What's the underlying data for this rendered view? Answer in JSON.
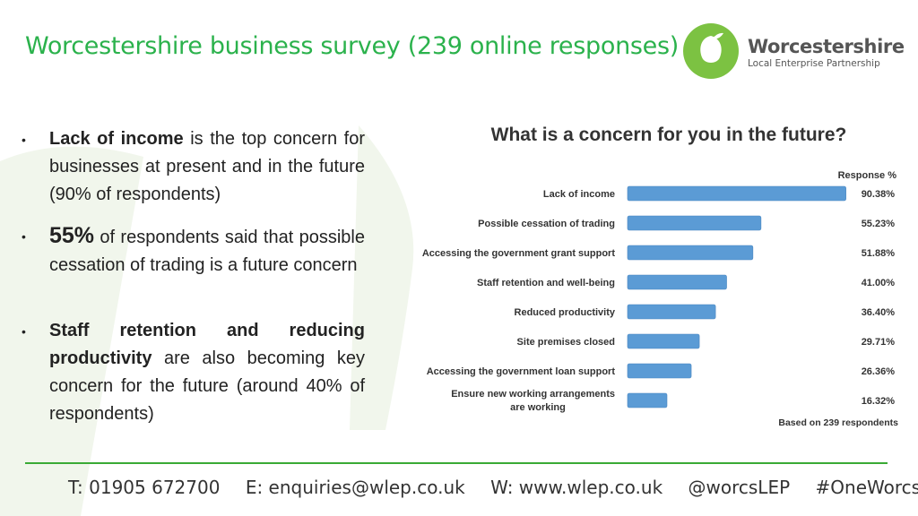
{
  "slide": {
    "title": "Worcestershire business survey (239 online responses)",
    "accent_color": "#2bb24c"
  },
  "logo": {
    "name": "Worcestershire",
    "subtitle": "Local Enterprise Partnership",
    "icon": "pear-leaf-icon"
  },
  "bullets": [
    {
      "strong": "Lack of income",
      "rest": " is the top concern for businesses at present and in the future (90% of respondents)"
    },
    {
      "strong": "55%",
      "rest": " of respondents said that possible cessation of trading is a future concern"
    },
    {
      "strong": "Staff retention and reducing productivity",
      "rest": " are also becoming key concern for the future (around 40% of respondents)"
    }
  ],
  "chart_data": {
    "type": "bar",
    "orientation": "horizontal",
    "title": "What is a concern for you in the future?",
    "value_header": "Response %",
    "footnote": "Based on 239 respondents",
    "categories": [
      "Lack of income",
      "Possible cessation of trading",
      "Accessing the government grant support",
      "Staff retention and well-being",
      "Reduced productivity",
      "Site premises closed",
      "Accessing the government loan support",
      "Ensure new working arrangements are working"
    ],
    "values": [
      90.38,
      55.23,
      51.88,
      41.0,
      36.4,
      29.71,
      26.36,
      16.32
    ],
    "value_labels": [
      "90.38%",
      "55.23%",
      "51.88%",
      "41.00%",
      "36.40%",
      "29.71%",
      "26.36%",
      "16.32%"
    ],
    "xlim": [
      0,
      92
    ],
    "bar_color": "#5b9bd5",
    "grid": false
  },
  "footer": {
    "phone": "T: 01905 672700",
    "email": "E: enquiries@wlep.co.uk",
    "web": "W: www.wlep.co.uk",
    "twitter": "@worcsLEP",
    "hashtag": "#OneWorcs",
    "rule_color": "#3aaa35"
  }
}
